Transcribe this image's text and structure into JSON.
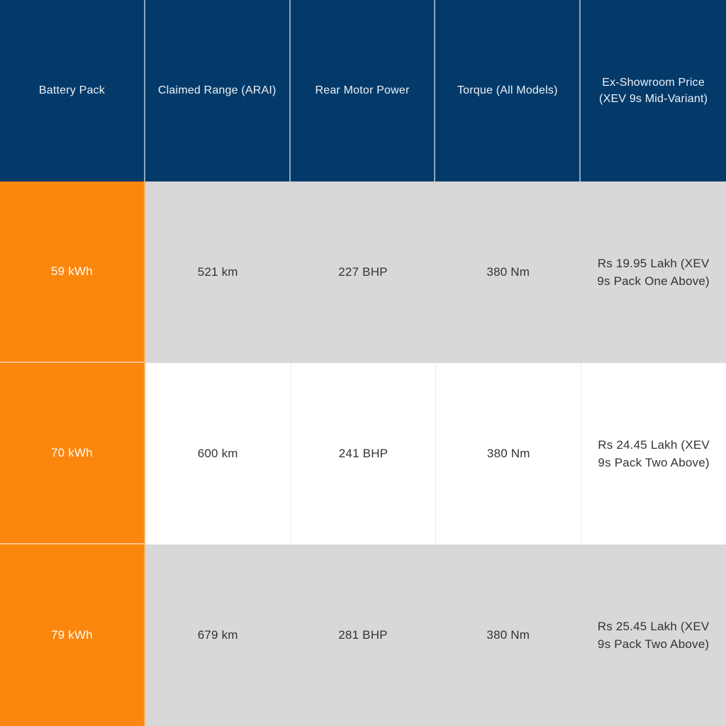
{
  "chart_data": {
    "type": "table",
    "columns": [
      "Battery Pack",
      "Claimed Range (ARAI)",
      "Rear Motor Power",
      "Torque (All Models)",
      "Ex-Showroom Price (XEV 9s Mid-Variant)"
    ],
    "rows": [
      [
        "59 kWh",
        "521 km",
        "227 BHP",
        "380 Nm",
        "Rs 19.95 Lakh (XEV 9s Pack One Above)"
      ],
      [
        "70 kWh",
        "600 km",
        "241 BHP",
        "380 Nm",
        "Rs 24.45 Lakh (XEV 9s Pack Two Above)"
      ],
      [
        "79 kWh",
        "679 km",
        "281 BHP",
        "380 Nm",
        "Rs 25.45 Lakh (XEV 9s Pack Two Above)"
      ]
    ],
    "layout": {
      "header_position": "top",
      "highlight_column": "Battery Pack",
      "row_striping": "gray-white-gray"
    },
    "colors": {
      "header_bg": "#043a69",
      "header_text": "#eef2f6",
      "battery_column_bg": "#fb860e",
      "battery_column_text": "#ffffff",
      "row_alt_bg": "#d8d8d8",
      "row_bg": "#ffffff",
      "data_text": "#333333"
    }
  }
}
